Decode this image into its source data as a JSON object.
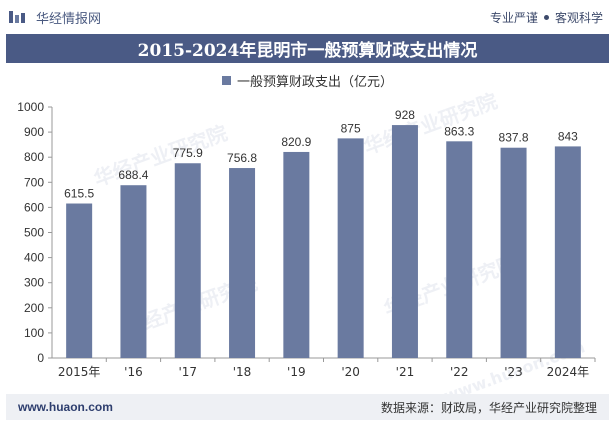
{
  "header": {
    "brand": "华经情报网",
    "tag_left": "专业严谨",
    "tag_right": "客观科学"
  },
  "title": "2015-2024年昆明市一般预算财政支出情况",
  "legend": {
    "label": "一般预算财政支出（亿元）"
  },
  "watermark": "华经产业研究院",
  "watermark_url": "www.huaon.com",
  "footer": {
    "url": "www.huaon.com",
    "source": "数据来源：财政局，华经产业研究院整理"
  },
  "colors": {
    "bar": "#6a7aa0",
    "title_bg": "#4a5a85"
  },
  "chart_data": {
    "type": "bar",
    "categories": [
      "2015年",
      "'16",
      "'17",
      "'18",
      "'19",
      "'20",
      "'21",
      "'22",
      "'23",
      "2024年"
    ],
    "series": [
      {
        "name": "一般预算财政支出（亿元）",
        "values": [
          615.5,
          688.4,
          775.9,
          756.8,
          820.9,
          875,
          928,
          863.3,
          837.8,
          843
        ]
      }
    ],
    "data_labels": [
      "615.5",
      "688.4",
      "775.9",
      "756.8",
      "820.9",
      "875",
      "928",
      "863.3",
      "837.8",
      "843"
    ],
    "yticks": [
      "0",
      "100",
      "200",
      "300",
      "400",
      "500",
      "600",
      "700",
      "800",
      "900",
      "1000"
    ],
    "ylim": [
      0,
      1000
    ],
    "grid": false,
    "legend_position": "top"
  }
}
